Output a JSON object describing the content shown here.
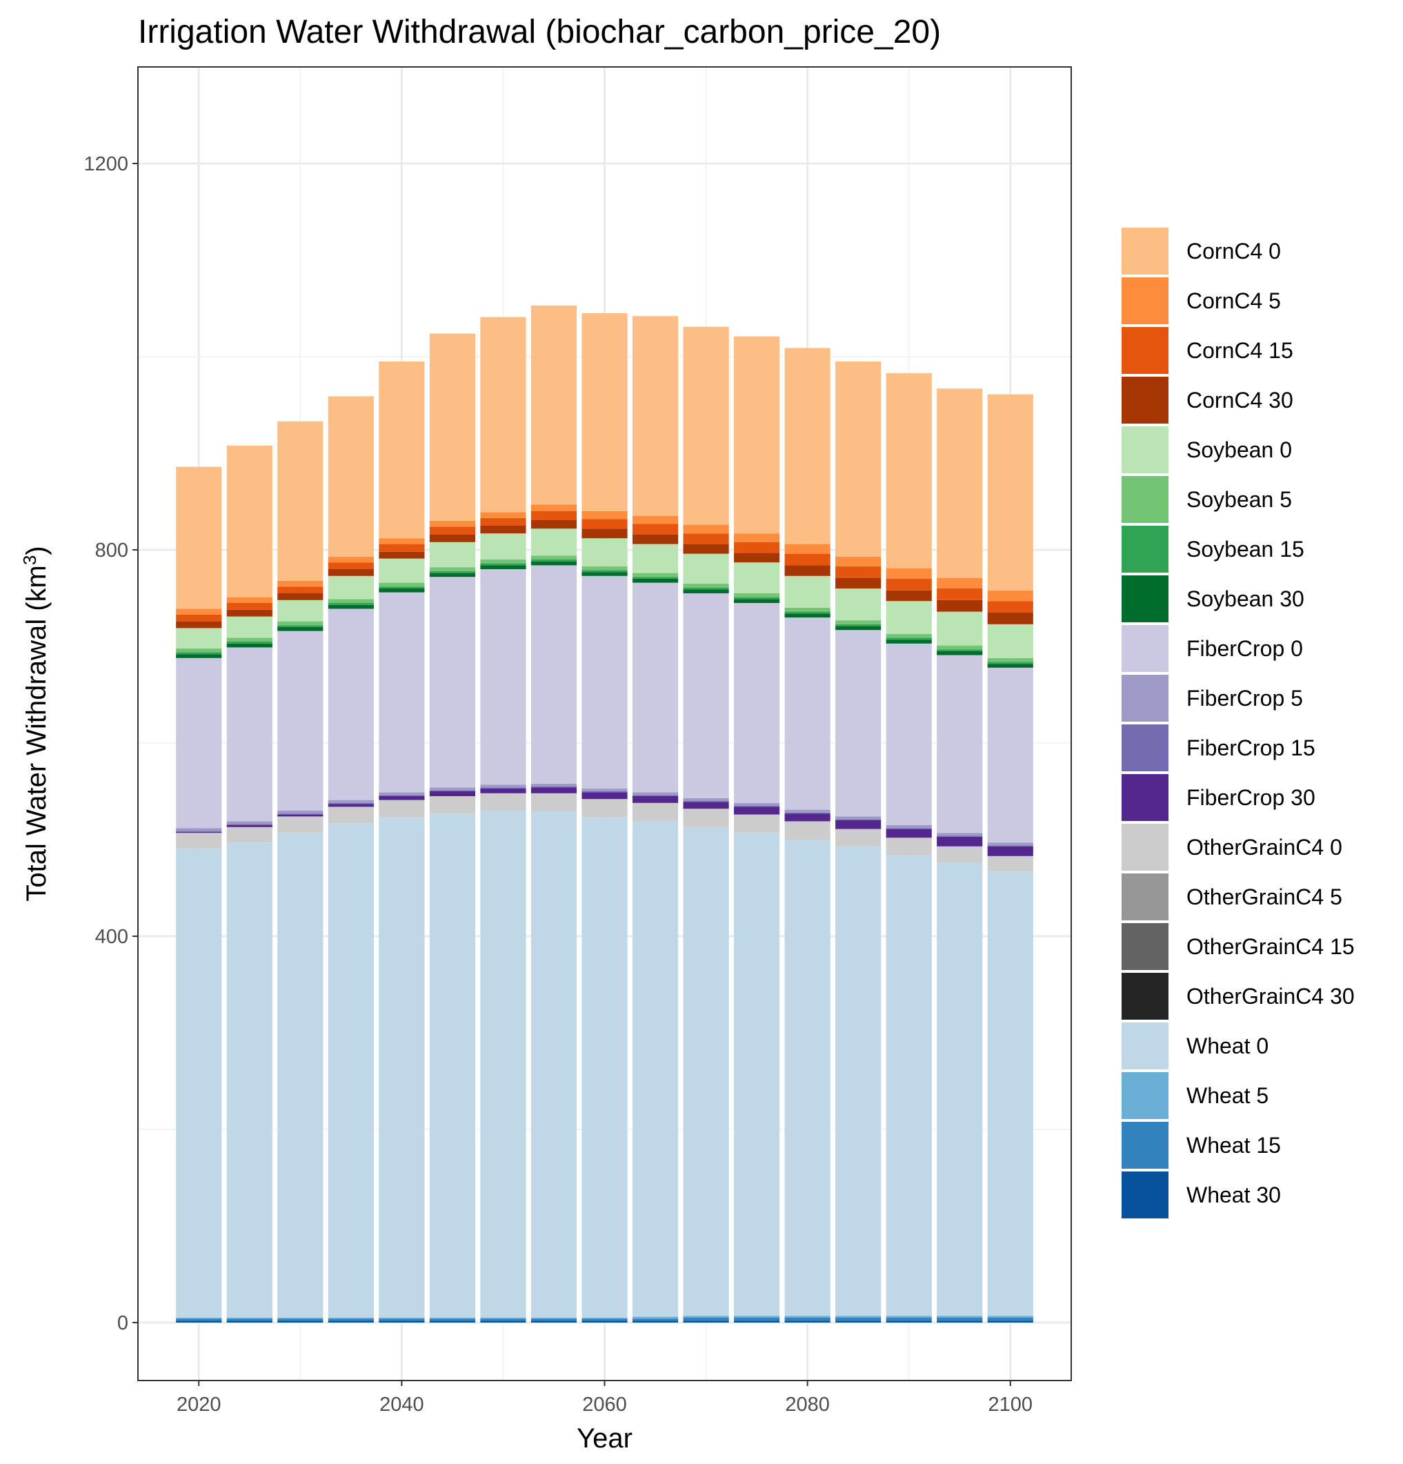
{
  "chart_data": {
    "type": "bar",
    "stacked": true,
    "title": "Irrigation Water Withdrawal (biochar_carbon_price_20)",
    "xlabel": "Year",
    "ylabel": "Total Water Withdrawal (km",
    "ylabel_superscript": "3",
    "ylabel_suffix": ")",
    "xlim": [
      2014,
      2106
    ],
    "ylim": [
      -60,
      1300
    ],
    "x_ticks": [
      2020,
      2040,
      2060,
      2080,
      2100
    ],
    "x_tick_labels": [
      "2020",
      "2040",
      "2060",
      "2080",
      "2100"
    ],
    "y_ticks": [
      0,
      400,
      800,
      1200
    ],
    "y_tick_labels": [
      "0",
      "400",
      "800",
      "1200"
    ],
    "y_minor_ticks": [
      200,
      600,
      1000
    ],
    "x_minor_ticks": [
      2030,
      2050,
      2070,
      2090
    ],
    "bar_width_years": 4.5,
    "grid": true,
    "legend_position": "right",
    "x": [
      2020,
      2025,
      2030,
      2035,
      2040,
      2045,
      2050,
      2055,
      2060,
      2065,
      2070,
      2075,
      2080,
      2085,
      2090,
      2095,
      2100
    ],
    "series": [
      {
        "name": "Wheat 30",
        "color": "#08519C",
        "values": [
          2,
          2,
          2,
          2,
          2,
          2,
          2,
          2,
          2,
          2,
          2,
          2,
          2,
          2,
          2,
          2,
          2
        ]
      },
      {
        "name": "Wheat 15",
        "color": "#3182BD",
        "values": [
          2,
          2,
          2,
          2,
          2,
          2,
          2,
          2,
          2,
          2,
          3,
          3,
          3,
          3,
          3,
          3,
          3
        ]
      },
      {
        "name": "Wheat 5",
        "color": "#6BAED6",
        "values": [
          1,
          1,
          1,
          1,
          1,
          1,
          1,
          1,
          1,
          2,
          2,
          2,
          2,
          2,
          2,
          2,
          2
        ]
      },
      {
        "name": "Wheat 0",
        "color": "#BFD7E6",
        "values": [
          486,
          492,
          502,
          512,
          518,
          522,
          525,
          524,
          518,
          513,
          506,
          500,
          493,
          486,
          477,
          469,
          460
        ]
      },
      {
        "name": "OtherGrainC4 30",
        "color": "#252525",
        "values": [
          0,
          0,
          0,
          0,
          0,
          0,
          0,
          0,
          0,
          0,
          0,
          0,
          0,
          0,
          0,
          0,
          0
        ]
      },
      {
        "name": "OtherGrainC4 15",
        "color": "#636363",
        "values": [
          0,
          0,
          0,
          0,
          0,
          0,
          0,
          0,
          0,
          0,
          0,
          0,
          0,
          0,
          0,
          0,
          0
        ]
      },
      {
        "name": "OtherGrainC4 5",
        "color": "#969696",
        "values": [
          0,
          0,
          0,
          0,
          0,
          0,
          0,
          0,
          0,
          0,
          0,
          0,
          0,
          0,
          0,
          0,
          0
        ]
      },
      {
        "name": "OtherGrainC4 0",
        "color": "#CCCCCC",
        "values": [
          16,
          16,
          17,
          17,
          18,
          18,
          18,
          19,
          19,
          19,
          19,
          19,
          19,
          18,
          18,
          17,
          16
        ]
      },
      {
        "name": "FiberCrop 30",
        "color": "#54278F",
        "values": [
          1,
          2,
          2,
          3,
          4,
          5,
          5,
          6,
          7,
          7,
          7,
          8,
          8,
          9,
          9,
          10,
          10
        ]
      },
      {
        "name": "FiberCrop 15",
        "color": "#756BB1",
        "values": [
          1,
          1,
          1,
          1,
          1,
          1,
          1,
          1,
          1,
          1,
          1,
          1,
          1,
          1,
          1,
          1,
          1
        ]
      },
      {
        "name": "FiberCrop 5",
        "color": "#9E9AC8",
        "values": [
          3,
          3,
          3,
          3,
          3,
          3,
          3,
          3,
          3,
          3,
          3,
          3,
          3,
          3,
          3,
          3,
          3
        ]
      },
      {
        "name": "FiberCrop 0",
        "color": "#CBC9E2",
        "values": [
          176,
          180,
          186,
          198,
          207,
          218,
          223,
          226,
          220,
          217,
          212,
          207,
          199,
          193,
          188,
          184,
          181
        ]
      },
      {
        "name": "Soybean 30",
        "color": "#006D2C",
        "values": [
          4,
          4,
          4,
          4,
          4,
          4,
          4,
          4,
          4,
          4,
          4,
          4,
          4,
          4,
          4,
          4,
          4
        ]
      },
      {
        "name": "Soybean 15",
        "color": "#31A354",
        "values": [
          2,
          2,
          2,
          2,
          2,
          2,
          2,
          2,
          2,
          2,
          2,
          2,
          2,
          2,
          2,
          2,
          2
        ]
      },
      {
        "name": "Soybean 5",
        "color": "#74C476",
        "values": [
          4,
          4,
          4,
          4,
          4,
          4,
          4,
          4,
          4,
          4,
          4,
          4,
          4,
          4,
          4,
          4,
          4
        ]
      },
      {
        "name": "Soybean 0",
        "color": "#BAE4B3",
        "values": [
          21,
          22,
          22,
          24,
          25,
          26,
          27,
          28,
          29,
          30,
          31,
          32,
          33,
          33,
          34,
          35,
          35
        ]
      },
      {
        "name": "CornC4 30",
        "color": "#A63603",
        "values": [
          7,
          7,
          7,
          7,
          7,
          8,
          8,
          9,
          10,
          10,
          10,
          10,
          11,
          11,
          11,
          12,
          12
        ]
      },
      {
        "name": "CornC4 15",
        "color": "#E6550D",
        "values": [
          7,
          7,
          7,
          7,
          8,
          8,
          8,
          9,
          10,
          11,
          11,
          11,
          12,
          12,
          12,
          12,
          12
        ]
      },
      {
        "name": "CornC4 5",
        "color": "#FD8D3C",
        "values": [
          6,
          6,
          6,
          6,
          6,
          6,
          6,
          7,
          8,
          8,
          9,
          9,
          10,
          10,
          11,
          11,
          11
        ]
      },
      {
        "name": "CornC4 0",
        "color": "#FDBE85",
        "values": [
          147,
          157,
          165,
          166,
          183,
          194,
          202,
          206,
          205,
          207,
          205,
          204,
          203,
          202,
          202,
          196,
          203
        ]
      }
    ],
    "legend": [
      {
        "label": "CornC4 0",
        "color": "#FDBE85"
      },
      {
        "label": "CornC4 5",
        "color": "#FD8D3C"
      },
      {
        "label": "CornC4 15",
        "color": "#E6550D"
      },
      {
        "label": "CornC4 30",
        "color": "#A63603"
      },
      {
        "label": "Soybean 0",
        "color": "#BAE4B3"
      },
      {
        "label": "Soybean 5",
        "color": "#74C476"
      },
      {
        "label": "Soybean 15",
        "color": "#31A354"
      },
      {
        "label": "Soybean 30",
        "color": "#006D2C"
      },
      {
        "label": "FiberCrop 0",
        "color": "#CBC9E2"
      },
      {
        "label": "FiberCrop 5",
        "color": "#9E9AC8"
      },
      {
        "label": "FiberCrop 15",
        "color": "#756BB1"
      },
      {
        "label": "FiberCrop 30",
        "color": "#54278F"
      },
      {
        "label": "OtherGrainC4 0",
        "color": "#CCCCCC"
      },
      {
        "label": "OtherGrainC4 5",
        "color": "#969696"
      },
      {
        "label": "OtherGrainC4 15",
        "color": "#636363"
      },
      {
        "label": "OtherGrainC4 30",
        "color": "#252525"
      },
      {
        "label": "Wheat 0",
        "color": "#BFD7E6"
      },
      {
        "label": "Wheat 5",
        "color": "#6BAED6"
      },
      {
        "label": "Wheat 15",
        "color": "#3182BD"
      },
      {
        "label": "Wheat 30",
        "color": "#08519C"
      }
    ]
  }
}
